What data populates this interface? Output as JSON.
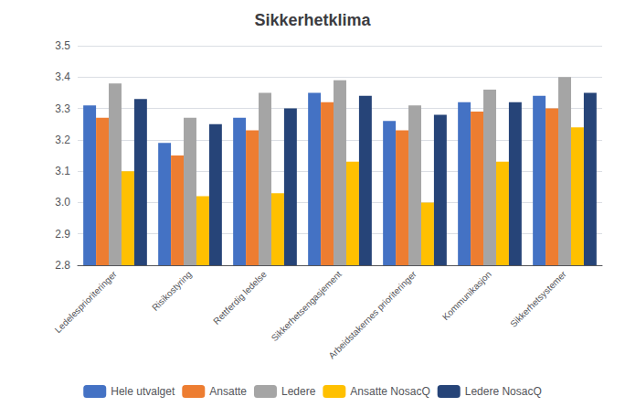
{
  "chart_data": {
    "type": "bar",
    "title": "Sikkerhetklima",
    "categories": [
      "Ledelesprioriteringer",
      "Risikostyring",
      "Rettferdig ledelse",
      "Sikkerhetsengasjement",
      "Arbeidstakernes prioriteringer",
      "Kommunikasjon",
      "Sikkerhetsystemer"
    ],
    "series": [
      {
        "name": "Hele utvalget",
        "color": "#4472C4",
        "values": [
          3.31,
          3.19,
          3.27,
          3.35,
          3.26,
          3.32,
          3.34
        ]
      },
      {
        "name": "Ansatte",
        "color": "#ED7D31",
        "values": [
          3.27,
          3.15,
          3.23,
          3.32,
          3.23,
          3.29,
          3.3
        ]
      },
      {
        "name": "Ledere",
        "color": "#A5A5A5",
        "values": [
          3.38,
          3.27,
          3.35,
          3.39,
          3.31,
          3.36,
          3.4
        ]
      },
      {
        "name": "Ansatte NosacQ",
        "color": "#FFC000",
        "values": [
          3.1,
          3.02,
          3.03,
          3.13,
          3.0,
          3.13,
          3.24
        ]
      },
      {
        "name": "Ledere NosacQ",
        "color": "#264478",
        "values": [
          3.33,
          3.25,
          3.3,
          3.34,
          3.28,
          3.32,
          3.35
        ]
      }
    ],
    "ylim": [
      2.8,
      3.5
    ],
    "yticks": [
      2.8,
      2.9,
      {
        "value": 3,
        "label": "3.0"
      },
      3.1,
      3.2,
      3.3,
      3.4,
      3.5
    ],
    "grid": true,
    "legend": "bottom"
  }
}
